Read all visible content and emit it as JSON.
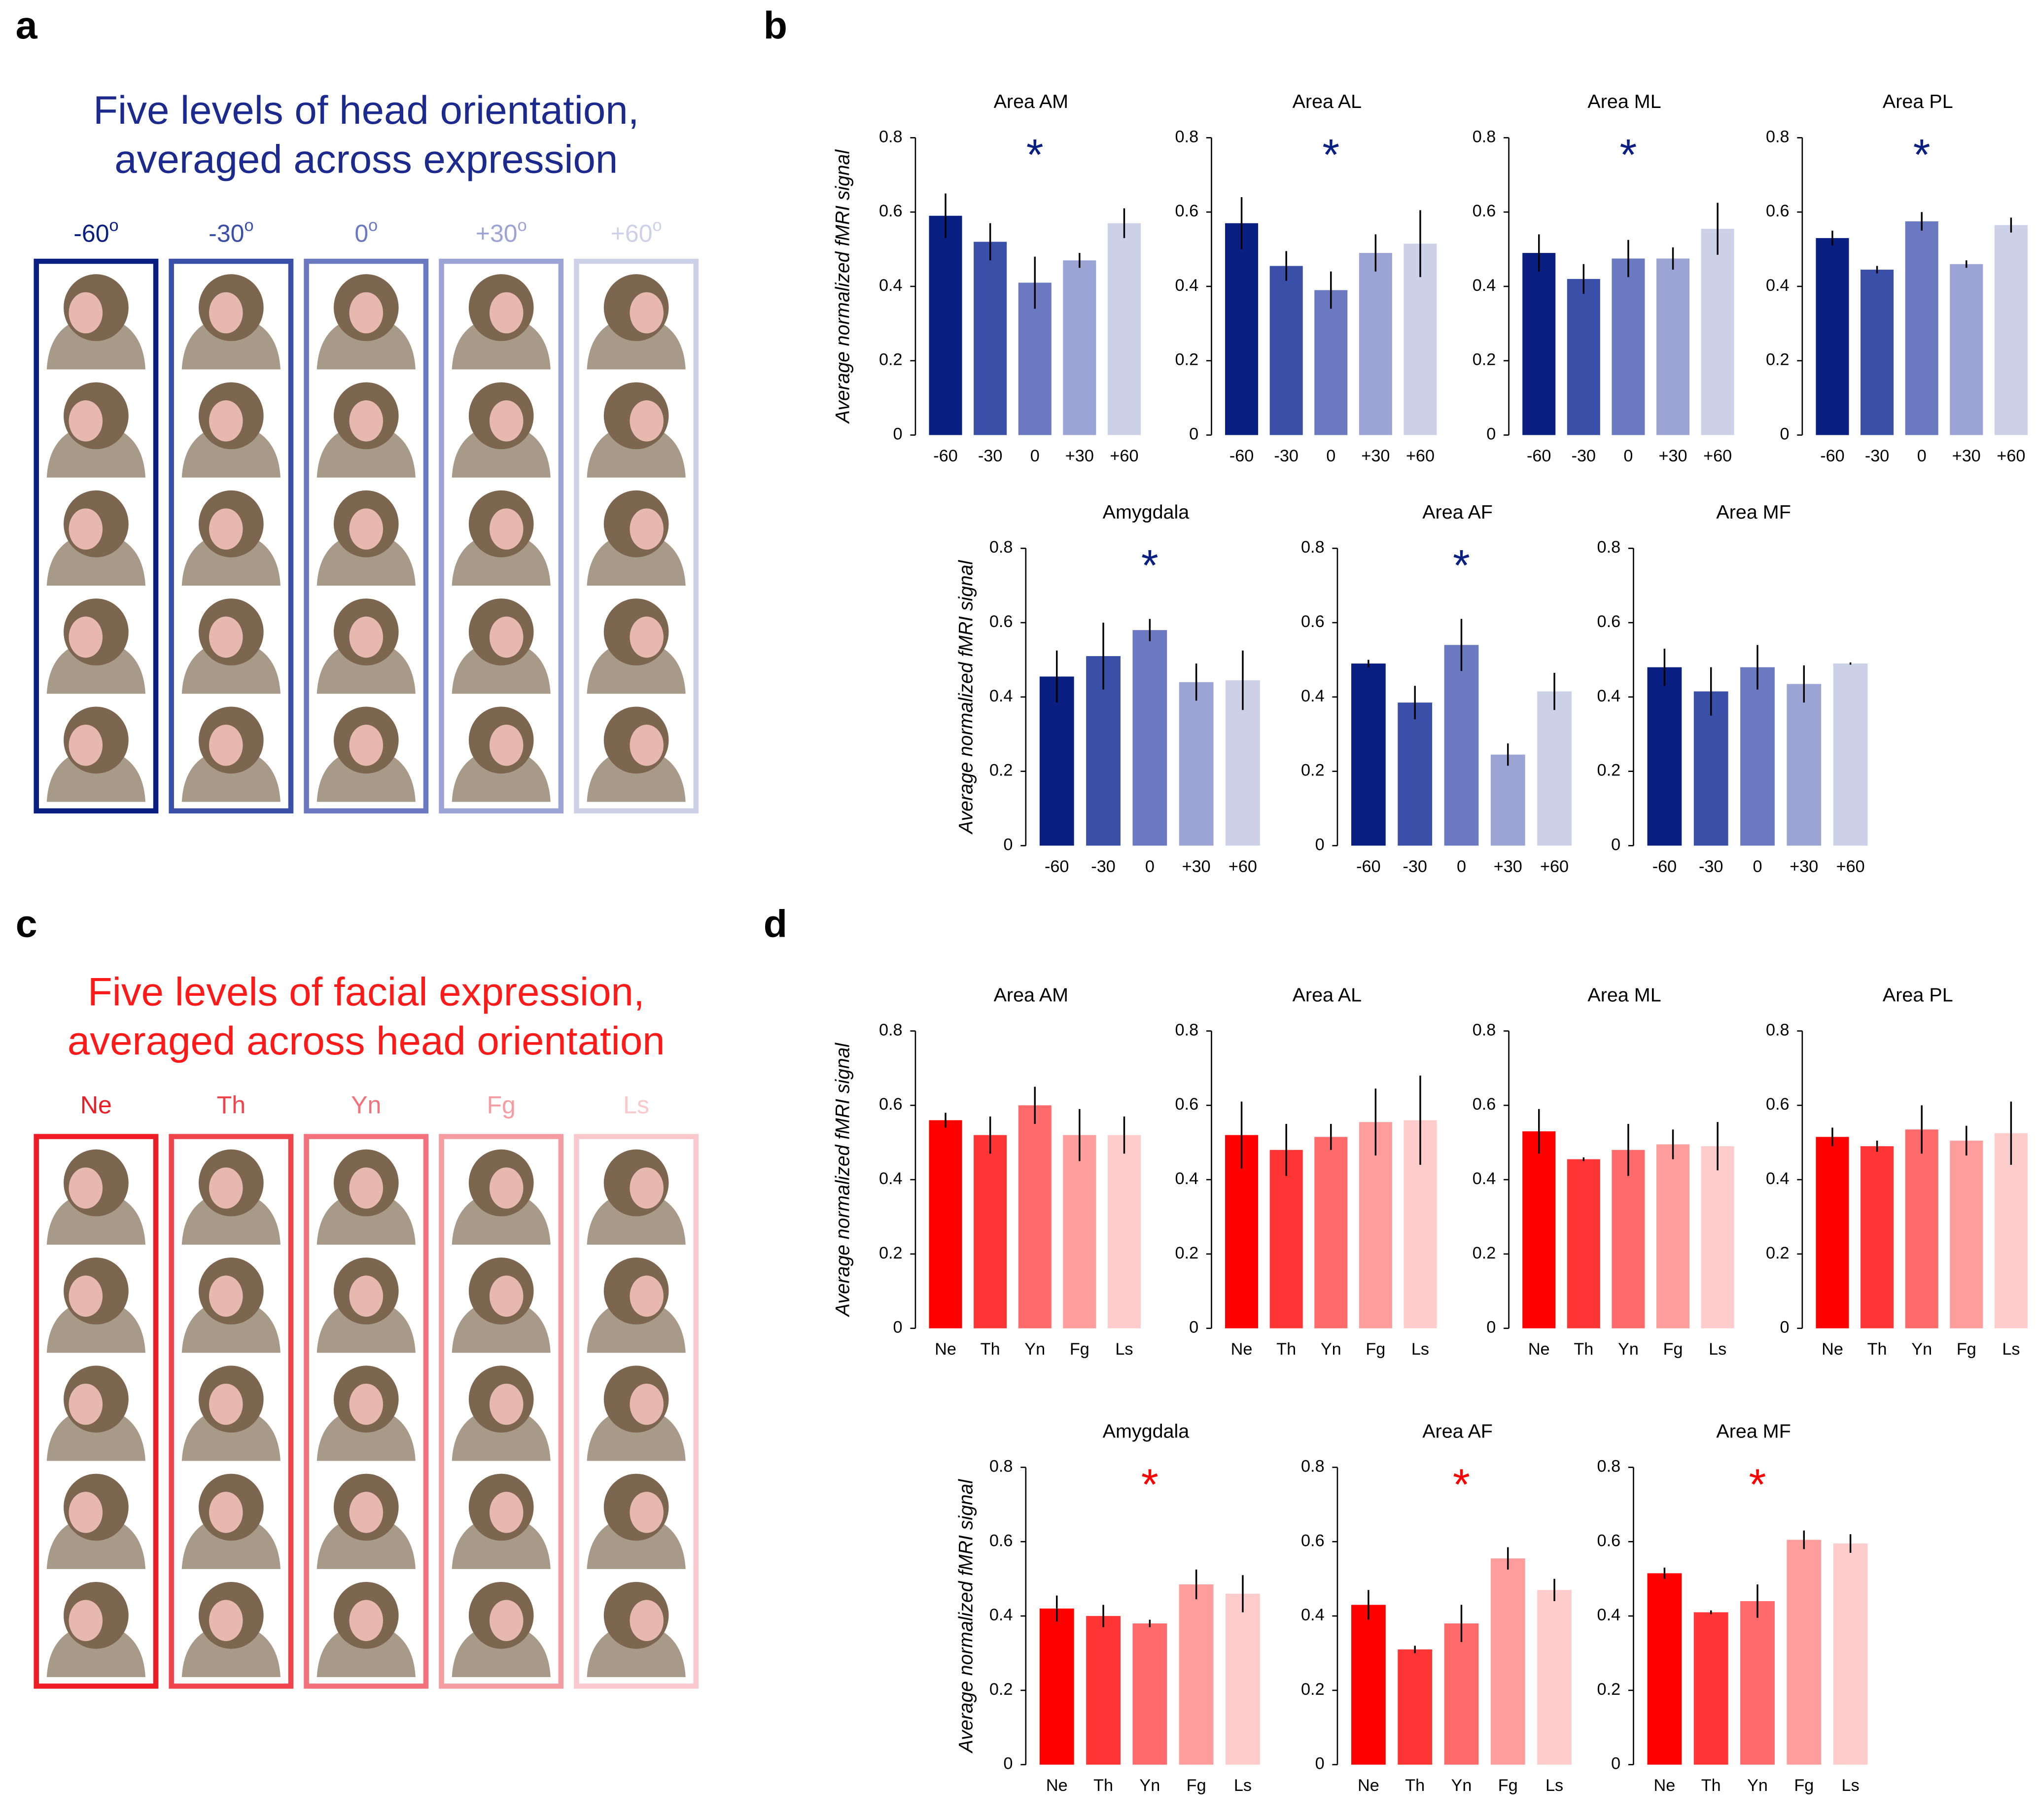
{
  "panels": {
    "a": {
      "letter": "a",
      "title_lines": [
        "Five levels of head orientation,",
        "averaged across expression"
      ],
      "title_color": "#1b2a8c",
      "columns": [
        {
          "text": "-60",
          "sup": "o"
        },
        {
          "text": "-30",
          "sup": "o"
        },
        {
          "text": "0",
          "sup": "o"
        },
        {
          "text": "+30",
          "sup": "o"
        },
        {
          "text": "+60",
          "sup": "o"
        }
      ],
      "colors": [
        "#0a1f82",
        "#3a4fa8",
        "#6b79c0",
        "#9ba4d4",
        "#ccd1e8"
      ]
    },
    "b": {
      "letter": "b"
    },
    "c": {
      "letter": "c",
      "title_lines": [
        "Five levels of facial expression,",
        "averaged across head orientation"
      ],
      "title_color": "#ff1a1a",
      "columns": [
        {
          "text": "Ne"
        },
        {
          "text": "Th"
        },
        {
          "text": "Yn"
        },
        {
          "text": "Fg"
        },
        {
          "text": "Ls"
        }
      ],
      "colors": [
        "#ee1c25",
        "#f0444c",
        "#f2717a",
        "#f59ca2",
        "#f8c8cc"
      ]
    },
    "d": {
      "letter": "d"
    }
  },
  "chart_data": [
    {
      "type": "bar",
      "title": "Area AM",
      "ylabel": "Average normalized fMRI signal",
      "categories": [
        "-60",
        "-30",
        "0",
        "+30",
        "+60"
      ],
      "values": [
        0.59,
        0.52,
        0.41,
        0.47,
        0.57
      ],
      "errors": [
        0.06,
        0.05,
        0.07,
        0.02,
        0.04
      ],
      "colors": [
        "#0a1f82",
        "#3a4fa8",
        "#6b79c0",
        "#9ba4d4",
        "#ccd1e8"
      ],
      "ylim": [
        0,
        0.8
      ],
      "yticks": [
        0,
        0.2,
        0.4,
        0.6,
        0.8
      ],
      "annotation": "*",
      "annotation_color": "#0a1f82"
    },
    {
      "type": "bar",
      "title": "Area AL",
      "categories": [
        "-60",
        "-30",
        "0",
        "+30",
        "+60"
      ],
      "values": [
        0.57,
        0.455,
        0.39,
        0.49,
        0.515
      ],
      "errors": [
        0.07,
        0.04,
        0.05,
        0.05,
        0.09
      ],
      "colors": [
        "#0a1f82",
        "#3a4fa8",
        "#6b79c0",
        "#9ba4d4",
        "#ccd1e8"
      ],
      "ylim": [
        0,
        0.8
      ],
      "yticks": [
        0,
        0.2,
        0.4,
        0.6,
        0.8
      ],
      "annotation": "*",
      "annotation_color": "#0a1f82"
    },
    {
      "type": "bar",
      "title": "Area ML",
      "categories": [
        "-60",
        "-30",
        "0",
        "+30",
        "+60"
      ],
      "values": [
        0.49,
        0.42,
        0.475,
        0.475,
        0.555
      ],
      "errors": [
        0.05,
        0.04,
        0.05,
        0.03,
        0.07
      ],
      "colors": [
        "#0a1f82",
        "#3a4fa8",
        "#6b79c0",
        "#9ba4d4",
        "#ccd1e8"
      ],
      "ylim": [
        0,
        0.8
      ],
      "yticks": [
        0,
        0.2,
        0.4,
        0.6,
        0.8
      ],
      "annotation": "*",
      "annotation_color": "#0a1f82"
    },
    {
      "type": "bar",
      "title": "Area PL",
      "categories": [
        "-60",
        "-30",
        "0",
        "+30",
        "+60"
      ],
      "values": [
        0.53,
        0.445,
        0.575,
        0.46,
        0.565
      ],
      "errors": [
        0.02,
        0.01,
        0.025,
        0.01,
        0.02
      ],
      "colors": [
        "#0a1f82",
        "#3a4fa8",
        "#6b79c0",
        "#9ba4d4",
        "#ccd1e8"
      ],
      "ylim": [
        0,
        0.8
      ],
      "yticks": [
        0,
        0.2,
        0.4,
        0.6,
        0.8
      ],
      "annotation": "*",
      "annotation_color": "#0a1f82"
    },
    {
      "type": "bar",
      "title": "Amygdala",
      "ylabel": "Average normalized fMRI signal",
      "categories": [
        "-60",
        "-30",
        "0",
        "+30",
        "+60"
      ],
      "values": [
        0.455,
        0.51,
        0.58,
        0.44,
        0.445
      ],
      "errors": [
        0.07,
        0.09,
        0.03,
        0.05,
        0.08
      ],
      "colors": [
        "#0a1f82",
        "#3a4fa8",
        "#6b79c0",
        "#9ba4d4",
        "#ccd1e8"
      ],
      "ylim": [
        0,
        0.8
      ],
      "yticks": [
        0,
        0.2,
        0.4,
        0.6,
        0.8
      ],
      "annotation": "*",
      "annotation_color": "#0a1f82"
    },
    {
      "type": "bar",
      "title": "Area AF",
      "categories": [
        "-60",
        "-30",
        "0",
        "+30",
        "+60"
      ],
      "values": [
        0.49,
        0.385,
        0.54,
        0.245,
        0.415
      ],
      "errors": [
        0.01,
        0.045,
        0.07,
        0.03,
        0.05
      ],
      "colors": [
        "#0a1f82",
        "#3a4fa8",
        "#6b79c0",
        "#9ba4d4",
        "#ccd1e8"
      ],
      "ylim": [
        0,
        0.8
      ],
      "yticks": [
        0,
        0.2,
        0.4,
        0.6,
        0.8
      ],
      "annotation": "*",
      "annotation_color": "#0a1f82"
    },
    {
      "type": "bar",
      "title": "Area MF",
      "categories": [
        "-60",
        "-30",
        "0",
        "+30",
        "+60"
      ],
      "values": [
        0.48,
        0.415,
        0.48,
        0.435,
        0.49
      ],
      "errors": [
        0.05,
        0.065,
        0.06,
        0.05,
        0.003
      ],
      "colors": [
        "#0a1f82",
        "#3a4fa8",
        "#6b79c0",
        "#9ba4d4",
        "#ccd1e8"
      ],
      "ylim": [
        0,
        0.8
      ],
      "yticks": [
        0,
        0.2,
        0.4,
        0.6,
        0.8
      ]
    },
    {
      "type": "bar",
      "title": "Area AM",
      "ylabel": "Average normalized fMRI signal",
      "categories": [
        "Ne",
        "Th",
        "Yn",
        "Fg",
        "Ls"
      ],
      "values": [
        0.56,
        0.52,
        0.6,
        0.52,
        0.52
      ],
      "errors": [
        0.02,
        0.05,
        0.05,
        0.07,
        0.05
      ],
      "colors": [
        "#ff0000",
        "#ff3535",
        "#ff6a6a",
        "#ff9c9c",
        "#ffcccc"
      ],
      "ylim": [
        0,
        0.8
      ],
      "yticks": [
        0,
        0.2,
        0.4,
        0.6,
        0.8
      ]
    },
    {
      "type": "bar",
      "title": "Area AL",
      "categories": [
        "Ne",
        "Th",
        "Yn",
        "Fg",
        "Ls"
      ],
      "values": [
        0.52,
        0.48,
        0.515,
        0.555,
        0.56
      ],
      "errors": [
        0.09,
        0.07,
        0.035,
        0.09,
        0.12
      ],
      "colors": [
        "#ff0000",
        "#ff3535",
        "#ff6a6a",
        "#ff9c9c",
        "#ffcccc"
      ],
      "ylim": [
        0,
        0.8
      ],
      "yticks": [
        0,
        0.2,
        0.4,
        0.6,
        0.8
      ]
    },
    {
      "type": "bar",
      "title": "Area ML",
      "categories": [
        "Ne",
        "Th",
        "Yn",
        "Fg",
        "Ls"
      ],
      "values": [
        0.53,
        0.455,
        0.48,
        0.495,
        0.49
      ],
      "errors": [
        0.06,
        0.005,
        0.07,
        0.04,
        0.065
      ],
      "colors": [
        "#ff0000",
        "#ff3535",
        "#ff6a6a",
        "#ff9c9c",
        "#ffcccc"
      ],
      "ylim": [
        0,
        0.8
      ],
      "yticks": [
        0,
        0.2,
        0.4,
        0.6,
        0.8
      ]
    },
    {
      "type": "bar",
      "title": "Area PL",
      "categories": [
        "Ne",
        "Th",
        "Yn",
        "Fg",
        "Ls"
      ],
      "values": [
        0.515,
        0.49,
        0.535,
        0.505,
        0.525
      ],
      "errors": [
        0.025,
        0.015,
        0.065,
        0.04,
        0.085
      ],
      "colors": [
        "#ff0000",
        "#ff3535",
        "#ff6a6a",
        "#ff9c9c",
        "#ffcccc"
      ],
      "ylim": [
        0,
        0.8
      ],
      "yticks": [
        0,
        0.2,
        0.4,
        0.6,
        0.8
      ]
    },
    {
      "type": "bar",
      "title": "Amygdala",
      "ylabel": "Average normalized fMRI signal",
      "categories": [
        "Ne",
        "Th",
        "Yn",
        "Fg",
        "Ls"
      ],
      "values": [
        0.42,
        0.4,
        0.38,
        0.485,
        0.46
      ],
      "errors": [
        0.035,
        0.03,
        0.01,
        0.04,
        0.05
      ],
      "colors": [
        "#ff0000",
        "#ff3535",
        "#ff6a6a",
        "#ff9c9c",
        "#ffcccc"
      ],
      "ylim": [
        0,
        0.8
      ],
      "yticks": [
        0,
        0.2,
        0.4,
        0.6,
        0.8
      ],
      "annotation": "*",
      "annotation_color": "#ff0000"
    },
    {
      "type": "bar",
      "title": "Area AF",
      "categories": [
        "Ne",
        "Th",
        "Yn",
        "Fg",
        "Ls"
      ],
      "values": [
        0.43,
        0.31,
        0.38,
        0.555,
        0.47
      ],
      "errors": [
        0.04,
        0.01,
        0.05,
        0.03,
        0.03
      ],
      "colors": [
        "#ff0000",
        "#ff3535",
        "#ff6a6a",
        "#ff9c9c",
        "#ffcccc"
      ],
      "ylim": [
        0,
        0.8
      ],
      "yticks": [
        0,
        0.2,
        0.4,
        0.6,
        0.8
      ],
      "annotation": "*",
      "annotation_color": "#ff0000"
    },
    {
      "type": "bar",
      "title": "Area MF",
      "categories": [
        "Ne",
        "Th",
        "Yn",
        "Fg",
        "Ls"
      ],
      "values": [
        0.515,
        0.41,
        0.44,
        0.605,
        0.595
      ],
      "errors": [
        0.015,
        0.005,
        0.045,
        0.025,
        0.025
      ],
      "colors": [
        "#ff0000",
        "#ff3535",
        "#ff6a6a",
        "#ff9c9c",
        "#ffcccc"
      ],
      "ylim": [
        0,
        0.8
      ],
      "yticks": [
        0,
        0.2,
        0.4,
        0.6,
        0.8
      ],
      "annotation": "*",
      "annotation_color": "#ff0000"
    }
  ]
}
